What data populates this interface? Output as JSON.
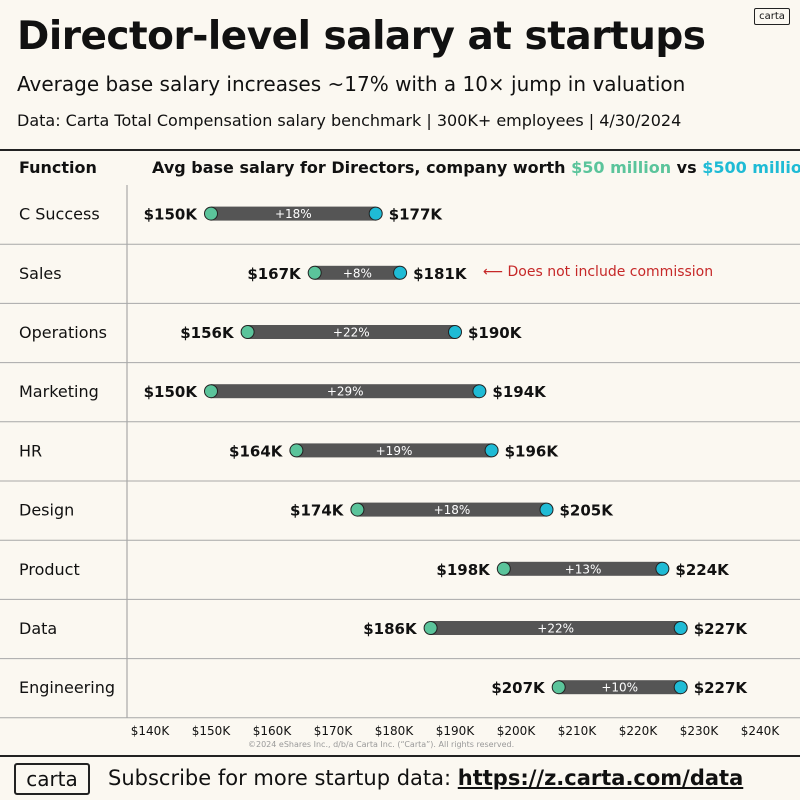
{
  "header": {
    "logo": "carta",
    "title": "Director-level salary at startups",
    "subtitle": "Average base salary increases ~17% with a 10× jump in valuation",
    "source": "Data: Carta Total Compensation salary benchmark | 300K+ employees | 4/30/2024"
  },
  "table_header": {
    "function_label": "Function",
    "heading_prefix": "Avg base salary for Directors, company worth ",
    "heading_50": "$50 million",
    "heading_vs": " vs ",
    "heading_500": "$500 million"
  },
  "annotation": "⟵  Does not include commission",
  "footer": {
    "copyright": "©2024 eShares Inc., d/b/a Carta Inc. (“Carta”). All rights reserved.",
    "logo": "carta",
    "text": "Subscribe for more startup data:  ",
    "link": "https://z.carta.com/data"
  },
  "colors": {
    "start": "#5bc49b",
    "end": "#1fbbd5",
    "bar": "#555555",
    "annotation": "#c62828"
  },
  "chart_data": {
    "type": "dumbbell",
    "xlim": [
      140,
      240
    ],
    "x_ticks": [
      140,
      150,
      160,
      170,
      180,
      190,
      200,
      210,
      220,
      230,
      240
    ],
    "x_tick_labels": [
      "$140K",
      "$150K",
      "$160K",
      "$170K",
      "$180K",
      "$190K",
      "$200K",
      "$210K",
      "$220K",
      "$230K",
      "$240K"
    ],
    "series": [
      {
        "name": "$50 million",
        "color": "#5bc49b"
      },
      {
        "name": "$500 million",
        "color": "#1fbbd5"
      }
    ],
    "rows": [
      {
        "function": "C Success",
        "start": 150,
        "end": 177,
        "start_label": "$150K",
        "end_label": "$177K",
        "change": "+18%"
      },
      {
        "function": "Sales",
        "start": 167,
        "end": 181,
        "start_label": "$167K",
        "end_label": "$181K",
        "change": "+8%"
      },
      {
        "function": "Operations",
        "start": 156,
        "end": 190,
        "start_label": "$156K",
        "end_label": "$190K",
        "change": "+22%"
      },
      {
        "function": "Marketing",
        "start": 150,
        "end": 194,
        "start_label": "$150K",
        "end_label": "$194K",
        "change": "+29%"
      },
      {
        "function": "HR",
        "start": 164,
        "end": 196,
        "start_label": "$164K",
        "end_label": "$196K",
        "change": "+19%"
      },
      {
        "function": "Design",
        "start": 174,
        "end": 205,
        "start_label": "$174K",
        "end_label": "$205K",
        "change": "+18%"
      },
      {
        "function": "Product",
        "start": 198,
        "end": 224,
        "start_label": "$198K",
        "end_label": "$224K",
        "change": "+13%"
      },
      {
        "function": "Data",
        "start": 186,
        "end": 227,
        "start_label": "$186K",
        "end_label": "$227K",
        "change": "+22%"
      },
      {
        "function": "Engineering",
        "start": 207,
        "end": 227,
        "start_label": "$207K",
        "end_label": "$227K",
        "change": "+10%"
      }
    ]
  }
}
